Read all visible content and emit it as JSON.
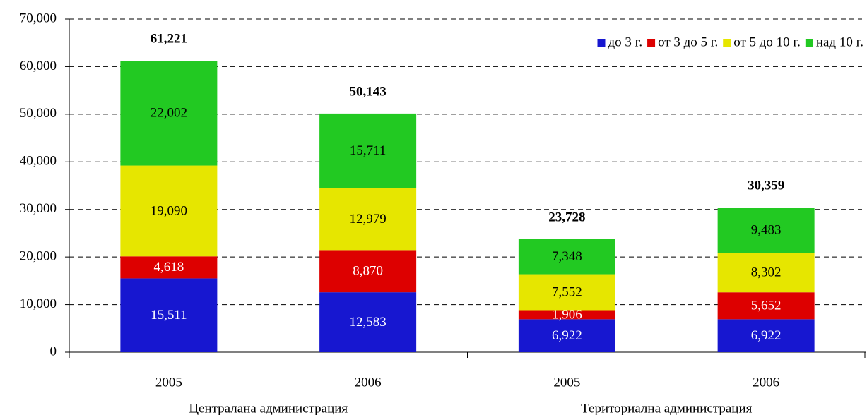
{
  "chart_data": {
    "type": "stacked_bar",
    "categories": [
      "2005",
      "2006",
      "2005",
      "2006"
    ],
    "groups": [
      "Централана администрация",
      "Териториална администрация"
    ],
    "series": [
      {
        "name": "до 3 г.",
        "color": "#1717d0",
        "values": [
          15511,
          12583,
          6922,
          6922
        ],
        "value_labels": [
          "15,511",
          "12,583",
          "6,922",
          "6,922"
        ]
      },
      {
        "name": "от 3 до 5 г.",
        "color": "#dd0000",
        "values": [
          4618,
          8870,
          1906,
          5652
        ],
        "value_labels": [
          "4,618",
          "8,870",
          "1,906",
          "5,652"
        ]
      },
      {
        "name": "от 5 до 10 г.",
        "color": "#e6e600",
        "values": [
          19090,
          12979,
          7552,
          8302
        ],
        "value_labels": [
          "19,090",
          "12,979",
          "7,552",
          "8,302"
        ]
      },
      {
        "name": "над 10 г.",
        "color": "#22c922",
        "values": [
          22002,
          15711,
          7348,
          9483
        ],
        "value_labels": [
          "22,002",
          "15,711",
          "7,348",
          "9,483"
        ]
      }
    ],
    "totals": {
      "values": [
        61221,
        50143,
        23728,
        30359
      ],
      "value_labels": [
        "61,221",
        "50,143",
        "23,728",
        "30,359"
      ]
    },
    "ylim": [
      0,
      70000
    ],
    "yticks": [
      0,
      {
        "value": 10000,
        "label": "10,000"
      },
      {
        "value": 20000,
        "label": "20,000"
      },
      {
        "value": 30000,
        "label": "30,000"
      },
      {
        "value": 40000,
        "label": "40,000"
      },
      {
        "value": 50000,
        "label": "50,000"
      },
      {
        "value": 60000,
        "label": "60,000"
      },
      {
        "value": 70000,
        "label": "70,000"
      }
    ],
    "grid": true,
    "legend": "top-right"
  }
}
